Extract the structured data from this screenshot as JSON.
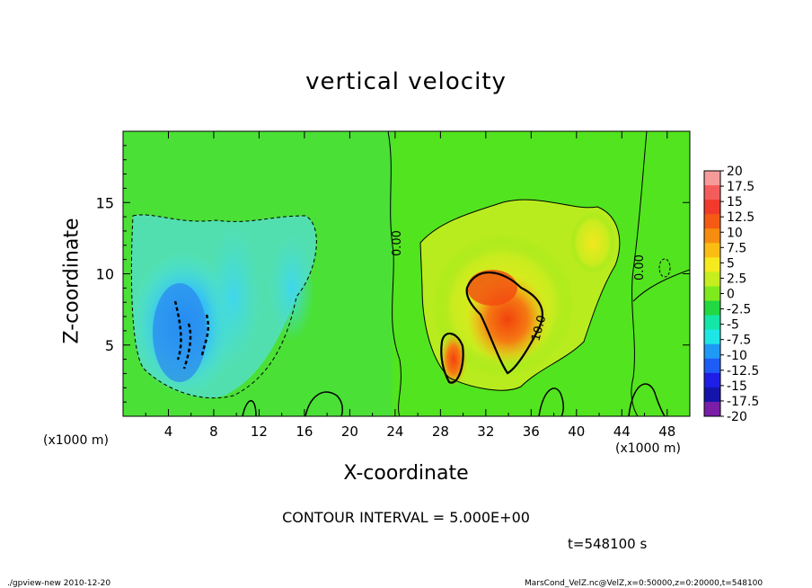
{
  "chart_data": {
    "type": "heatmap",
    "title": "vertical velocity",
    "xlabel": "X-coordinate",
    "ylabel": "Z-coordinate",
    "x_unit_label": "(x1000 m)",
    "x_ticks": [
      "4",
      "8",
      "12",
      "16",
      "20",
      "24",
      "28",
      "32",
      "36",
      "40",
      "44",
      "48"
    ],
    "y_ticks": [
      "5",
      "10",
      "15"
    ],
    "xlim": [
      0,
      50
    ],
    "ylim": [
      0,
      20
    ],
    "colorbar": {
      "labels": [
        "20",
        "17.5",
        "15",
        "12.5",
        "10",
        "7.5",
        "5",
        "2.5",
        "0",
        "-2.5",
        "-5",
        "-7.5",
        "-10",
        "-12.5",
        "-15",
        "-17.5",
        "-20"
      ],
      "colors": [
        "#f79a9a",
        "#f45c5c",
        "#f23a2c",
        "#f55a14",
        "#f78d10",
        "#fbbd14",
        "#f5ea1e",
        "#c6ee1e",
        "#7eea1e",
        "#22d843",
        "#14e6a8",
        "#1ee6e6",
        "#1e9af6",
        "#1e5cf6",
        "#1e1ee6",
        "#1414aa",
        "#7a1ea8"
      ]
    },
    "contour_labels": [
      "0.00",
      "0.00",
      "10.0"
    ],
    "contour_interval": "CONTOUR INTERVAL = 5.000E+00",
    "time": "t=548100 s"
  },
  "footer": {
    "left": "./gpview-new  2010-12-20",
    "right": "MarsCond_VelZ.nc@VelZ,x=0:50000,z=0:20000,t=548100"
  }
}
